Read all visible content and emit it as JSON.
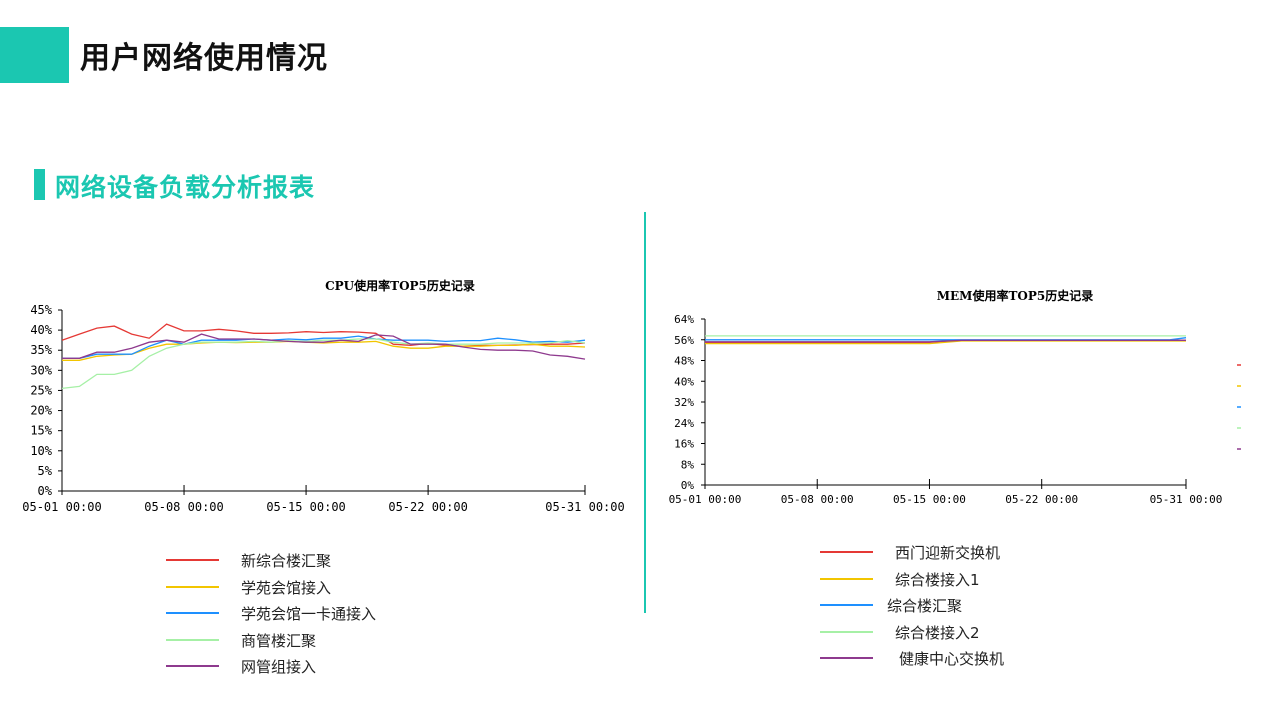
{
  "header": {
    "title": "用户网络使用情况"
  },
  "section": {
    "title": "网络设备负载分析报表"
  },
  "chart_data": [
    {
      "type": "line",
      "title": "CPU使用率TOP5历史记录",
      "ylim": [
        0,
        45
      ],
      "yticks": [
        "0%",
        "5%",
        "10%",
        "15%",
        "20%",
        "25%",
        "30%",
        "35%",
        "40%",
        "45%"
      ],
      "xlim": [
        0,
        30
      ],
      "xticks": [
        {
          "v": 0,
          "label": "05-01 00:00"
        },
        {
          "v": 7,
          "label": "05-08 00:00"
        },
        {
          "v": 14,
          "label": "05-15 00:00"
        },
        {
          "v": 21,
          "label": "05-22 00:00"
        },
        {
          "v": 30,
          "label": "05-31 00:00"
        }
      ],
      "grid": false,
      "series": [
        {
          "name": "新综合楼汇聚",
          "color": "#e53935",
          "x": [
            0,
            1,
            2,
            3,
            4,
            5,
            6,
            7,
            8,
            9,
            10,
            11,
            12,
            13,
            14,
            15,
            16,
            17,
            18,
            19,
            20,
            21,
            22,
            23,
            24,
            25,
            26,
            27,
            28,
            29,
            30
          ],
          "values": [
            37.5,
            39,
            40.5,
            41,
            39,
            38,
            41.5,
            39.8,
            39.8,
            40.2,
            39.8,
            39.2,
            39.2,
            39.3,
            39.6,
            39.4,
            39.6,
            39.5,
            39.2,
            36.5,
            36.2,
            36.7,
            36.2,
            36,
            36.2,
            36.2,
            36.3,
            36.4,
            36.5,
            36.5,
            36.8
          ]
        },
        {
          "name": "学苑会馆接入",
          "color": "#f2c500",
          "x": [
            0,
            1,
            2,
            3,
            4,
            5,
            6,
            7,
            8,
            9,
            10,
            11,
            12,
            13,
            14,
            15,
            16,
            17,
            18,
            19,
            20,
            21,
            22,
            23,
            24,
            25,
            26,
            27,
            28,
            29,
            30
          ],
          "values": [
            32.5,
            32.5,
            33.5,
            33.8,
            34,
            35.5,
            36.5,
            36.5,
            36.8,
            37,
            36.9,
            37,
            37,
            37.2,
            37,
            36.8,
            37,
            37,
            37.2,
            36,
            35.5,
            35.5,
            36,
            36,
            36,
            36.2,
            36.2,
            36.5,
            36,
            36,
            35.8
          ]
        },
        {
          "name": "学苑会馆一卡通接入",
          "color": "#1e90ff",
          "x": [
            0,
            1,
            2,
            3,
            4,
            5,
            6,
            7,
            8,
            9,
            10,
            11,
            12,
            13,
            14,
            15,
            16,
            17,
            18,
            19,
            20,
            21,
            22,
            23,
            24,
            25,
            26,
            27,
            28,
            29,
            30
          ],
          "values": [
            33,
            33,
            34,
            34,
            34,
            36,
            37.5,
            36.5,
            37.5,
            37.5,
            37.5,
            37.8,
            37.5,
            37.8,
            37.6,
            38,
            38,
            38.5,
            37.8,
            37.5,
            37.5,
            37.5,
            37.2,
            37.4,
            37.4,
            38,
            37.6,
            37,
            37.2,
            37,
            37.5
          ]
        },
        {
          "name": "商管楼汇聚",
          "color": "#a6f0a6",
          "x": [
            0,
            1,
            2,
            3,
            4,
            5,
            6,
            7,
            8,
            9,
            10,
            11,
            12,
            13,
            14,
            15,
            16,
            17,
            18,
            19,
            20,
            21,
            22,
            23,
            24,
            25,
            26,
            27,
            28,
            29,
            30
          ],
          "values": [
            25.5,
            26,
            29,
            29,
            30,
            33.5,
            35.5,
            36.5,
            37,
            37,
            37,
            37.2,
            37,
            37.4,
            37.2,
            37.5,
            37.5,
            37.8,
            37.8,
            37,
            36.5,
            36.8,
            36.5,
            36.5,
            36.5,
            36.8,
            36.8,
            36.8,
            36.8,
            37.4,
            36.8
          ]
        },
        {
          "name": "网管组接入",
          "color": "#8e3a8e",
          "x": [
            0,
            1,
            2,
            3,
            4,
            5,
            6,
            7,
            8,
            9,
            10,
            11,
            12,
            13,
            14,
            15,
            16,
            17,
            18,
            19,
            20,
            21,
            22,
            23,
            24,
            25,
            26,
            27,
            28,
            29,
            30
          ],
          "values": [
            33,
            33,
            34.5,
            34.5,
            35.5,
            37,
            37.5,
            37,
            39,
            37.8,
            37.8,
            37.8,
            37.5,
            37.2,
            37,
            37,
            37.5,
            37.2,
            38.8,
            38.5,
            36.5,
            36.5,
            36.5,
            35.8,
            35.2,
            35,
            35,
            34.8,
            33.8,
            33.5,
            32.8
          ]
        }
      ]
    },
    {
      "type": "line",
      "title": "MEM使用率TOP5历史记录",
      "ylim": [
        0,
        64
      ],
      "yticks": [
        "0%",
        "8%",
        "16%",
        "24%",
        "32%",
        "40%",
        "48%",
        "56%",
        "64%"
      ],
      "xlim": [
        0,
        30
      ],
      "xticks": [
        {
          "v": 0,
          "label": "05-01 00:00"
        },
        {
          "v": 7,
          "label": "05-08 00:00"
        },
        {
          "v": 14,
          "label": "05-15 00:00"
        },
        {
          "v": 21,
          "label": "05-22 00:00"
        },
        {
          "v": 30,
          "label": "05-31 00:00"
        }
      ],
      "grid": false,
      "series": [
        {
          "name": "西门迎新交换机",
          "color": "#e53935",
          "x": [
            0,
            14,
            16,
            30
          ],
          "values": [
            55,
            55,
            55.8,
            55.8
          ]
        },
        {
          "name": "综合楼接入1",
          "color": "#f2c500",
          "x": [
            0,
            14,
            16,
            30
          ],
          "values": [
            54.5,
            54.5,
            55.5,
            55.5
          ]
        },
        {
          "name": "综合楼汇聚",
          "color": "#1e90ff",
          "x": [
            0,
            14,
            16,
            29,
            30
          ],
          "values": [
            56,
            56,
            56,
            56,
            56.8
          ]
        },
        {
          "name": "综合楼接入2",
          "color": "#a6f0a6",
          "x": [
            0,
            30
          ],
          "values": [
            57.5,
            57.5
          ]
        },
        {
          "name": "健康中心交换机",
          "color": "#8e3a8e",
          "x": [
            0,
            14,
            16,
            30
          ],
          "values": [
            55.2,
            55.2,
            55.8,
            55.8
          ]
        }
      ]
    }
  ]
}
